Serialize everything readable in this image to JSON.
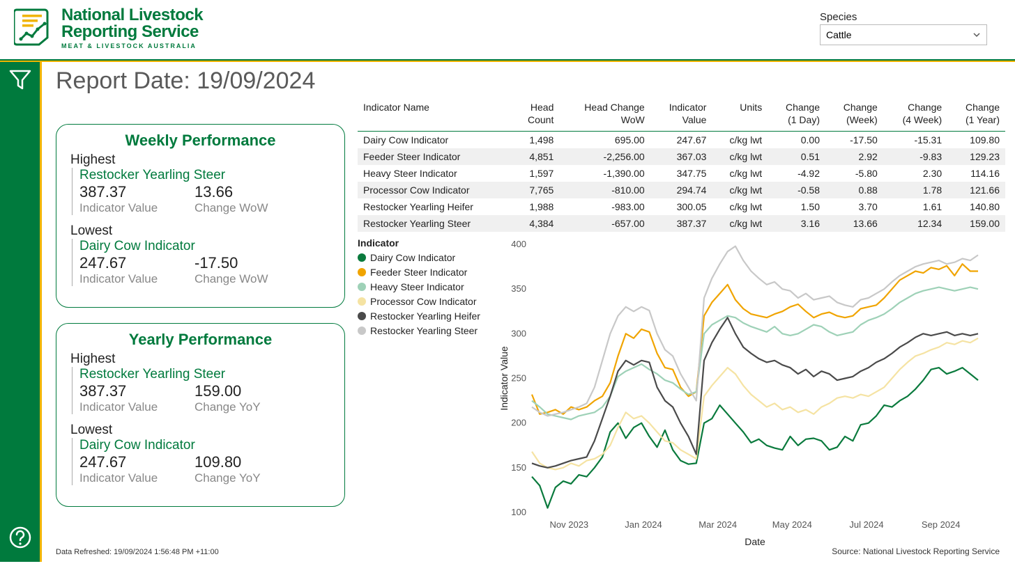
{
  "brand": {
    "line1": "National Livestock",
    "line2": "Reporting Service",
    "sub": "MEAT & LIVESTOCK AUSTRALIA",
    "logo_colors": {
      "frame": "#007a3d",
      "bars": "#f0b400",
      "line": "#007a3d"
    }
  },
  "species": {
    "label": "Species",
    "value": "Cattle"
  },
  "report_date": "Report Date: 19/09/2024",
  "rail": {
    "accent": "#f0b400",
    "bg": "#007a3d"
  },
  "cards": {
    "weekly": {
      "title": "Weekly Performance",
      "highest_label": "Highest",
      "lowest_label": "Lowest",
      "metric1_label": "Indicator Value",
      "metric2_label": "Change WoW",
      "highest": {
        "name": "Restocker Yearling Steer",
        "value": "387.37",
        "change": "13.66"
      },
      "lowest": {
        "name": "Dairy Cow Indicator",
        "value": "247.67",
        "change": "-17.50"
      }
    },
    "yearly": {
      "title": "Yearly Performance",
      "highest_label": "Highest",
      "lowest_label": "Lowest",
      "metric1_label": "Indicator Value",
      "metric2_label": "Change YoY",
      "highest": {
        "name": "Restocker Yearling Steer",
        "value": "387.37",
        "change": "159.00"
      },
      "lowest": {
        "name": "Dairy Cow Indicator",
        "value": "247.67",
        "change": "109.80"
      }
    }
  },
  "table": {
    "columns": [
      [
        "Indicator Name",
        ""
      ],
      [
        "Head",
        "Count"
      ],
      [
        "Head Change",
        "WoW"
      ],
      [
        "Indicator",
        "Value"
      ],
      [
        "Units",
        ""
      ],
      [
        "Change",
        "(1 Day)"
      ],
      [
        "Change",
        "(Week)"
      ],
      [
        "Change",
        "(4 Week)"
      ],
      [
        "Change",
        "(1 Year)"
      ]
    ],
    "rows": [
      {
        "name": "Dairy Cow Indicator",
        "head": "1,498",
        "hwow": "695.00",
        "hwow_sign": 1,
        "val": "247.67",
        "units": "c/kg lwt",
        "d1": "0.00",
        "d1_sign": 1,
        "wk": "-17.50",
        "wk_sign": -1,
        "w4": "-15.31",
        "w4_sign": -1,
        "yr": "109.80",
        "yr_sign": 1
      },
      {
        "name": "Feeder Steer Indicator",
        "head": "4,851",
        "hwow": "-2,256.00",
        "hwow_sign": -1,
        "val": "367.03",
        "units": "c/kg lwt",
        "d1": "0.51",
        "d1_sign": 1,
        "wk": "2.92",
        "wk_sign": 1,
        "w4": "-9.83",
        "w4_sign": -1,
        "yr": "129.23",
        "yr_sign": 1
      },
      {
        "name": "Heavy Steer Indicator",
        "head": "1,597",
        "hwow": "-1,390.00",
        "hwow_sign": -1,
        "val": "347.75",
        "units": "c/kg lwt",
        "d1": "-4.92",
        "d1_sign": -1,
        "wk": "-5.80",
        "wk_sign": -1,
        "w4": "2.30",
        "w4_sign": 1,
        "yr": "114.16",
        "yr_sign": 1
      },
      {
        "name": "Processor Cow Indicator",
        "head": "7,765",
        "hwow": "-810.00",
        "hwow_sign": -1,
        "val": "294.74",
        "units": "c/kg lwt",
        "d1": "-0.58",
        "d1_sign": -1,
        "wk": "0.88",
        "wk_sign": 1,
        "w4": "1.78",
        "w4_sign": 1,
        "yr": "121.66",
        "yr_sign": 1
      },
      {
        "name": "Restocker Yearling Heifer",
        "head": "1,988",
        "hwow": "-983.00",
        "hwow_sign": -1,
        "val": "300.05",
        "units": "c/kg lwt",
        "d1": "1.50",
        "d1_sign": 1,
        "wk": "3.70",
        "wk_sign": 1,
        "w4": "1.61",
        "w4_sign": 1,
        "yr": "140.80",
        "yr_sign": 1
      },
      {
        "name": "Restocker Yearling Steer",
        "head": "4,384",
        "hwow": "-657.00",
        "hwow_sign": -1,
        "val": "387.37",
        "units": "c/kg lwt",
        "d1": "3.16",
        "d1_sign": 1,
        "wk": "13.66",
        "wk_sign": 1,
        "w4": "12.34",
        "w4_sign": 1,
        "yr": "159.00",
        "yr_sign": 1
      }
    ]
  },
  "chart": {
    "type": "line",
    "legend_title": "Indicator",
    "y_label": "Indicator Value",
    "x_label": "Date",
    "ylim": [
      100,
      400
    ],
    "ytick_step": 50,
    "yticks": [
      100,
      150,
      200,
      250,
      300,
      350,
      400
    ],
    "xticks": [
      "Nov 2023",
      "Jan 2024",
      "Mar 2024",
      "May 2024",
      "Jul 2024",
      "Sep 2024"
    ],
    "background_color": "#ffffff",
    "grid_color": "#e8e8e8",
    "label_fontsize": 14,
    "tick_fontsize": 13,
    "line_width": 2.2,
    "series": [
      {
        "name": "Dairy Cow Indicator",
        "color": "#0a7a3d",
        "y": [
          140,
          130,
          105,
          128,
          135,
          132,
          142,
          140,
          150,
          162,
          190,
          200,
          183,
          195,
          200,
          185,
          173,
          192,
          170,
          158,
          154,
          155,
          200,
          205,
          220,
          210,
          200,
          190,
          178,
          182,
          175,
          172,
          170,
          185,
          175,
          182,
          183,
          180,
          170,
          173,
          185,
          180,
          198,
          200,
          208,
          220,
          218,
          225,
          230,
          238,
          248,
          260,
          262,
          255,
          258,
          262,
          255,
          248
        ]
      },
      {
        "name": "Feeder Steer Indicator",
        "color": "#f0a400",
        "y": [
          232,
          210,
          212,
          215,
          210,
          218,
          215,
          218,
          225,
          230,
          245,
          275,
          300,
          295,
          305,
          302,
          278,
          262,
          260,
          240,
          230,
          235,
          320,
          335,
          345,
          355,
          338,
          328,
          322,
          320,
          318,
          322,
          325,
          330,
          333,
          325,
          318,
          322,
          324,
          320,
          318,
          320,
          328,
          330,
          332,
          340,
          350,
          360,
          365,
          370,
          368,
          374,
          372,
          376,
          365,
          378,
          370,
          370
        ]
      },
      {
        "name": "Heavy Steer Indicator",
        "color": "#9ed1b7",
        "y": [
          225,
          218,
          210,
          208,
          206,
          204,
          208,
          210,
          212,
          218,
          230,
          252,
          258,
          262,
          266,
          260,
          255,
          248,
          245,
          238,
          232,
          235,
          300,
          310,
          315,
          320,
          318,
          312,
          308,
          305,
          302,
          308,
          300,
          298,
          300,
          305,
          310,
          308,
          302,
          298,
          300,
          302,
          310,
          315,
          318,
          322,
          328,
          335,
          340,
          345,
          348,
          350,
          352,
          350,
          348,
          350,
          352,
          350
        ]
      },
      {
        "name": "Processor Cow Indicator",
        "color": "#f5e3a3",
        "y": [
          168,
          155,
          150,
          148,
          150,
          155,
          152,
          158,
          160,
          165,
          175,
          195,
          212,
          205,
          208,
          200,
          190,
          180,
          178,
          170,
          165,
          160,
          230,
          242,
          252,
          262,
          255,
          242,
          232,
          225,
          218,
          222,
          215,
          218,
          212,
          215,
          210,
          218,
          222,
          228,
          230,
          228,
          232,
          230,
          235,
          240,
          250,
          260,
          268,
          275,
          278,
          282,
          285,
          290,
          288,
          292,
          290,
          295
        ]
      },
      {
        "name": "Restocker Yearling Heifer",
        "color": "#4a4a4a",
        "y": [
          155,
          152,
          150,
          152,
          155,
          158,
          160,
          162,
          180,
          205,
          230,
          258,
          270,
          265,
          270,
          268,
          240,
          225,
          218,
          200,
          185,
          165,
          270,
          290,
          305,
          318,
          300,
          285,
          278,
          272,
          268,
          270,
          265,
          262,
          255,
          260,
          252,
          258,
          255,
          248,
          250,
          252,
          258,
          262,
          268,
          272,
          278,
          285,
          290,
          296,
          300,
          298,
          300,
          302,
          298,
          300,
          298,
          300
        ]
      },
      {
        "name": "Restocker Yearling Steer",
        "color": "#c8c8c8",
        "y": [
          218,
          212,
          208,
          210,
          212,
          215,
          218,
          222,
          240,
          270,
          300,
          320,
          330,
          325,
          330,
          326,
          300,
          282,
          275,
          255,
          240,
          225,
          340,
          362,
          378,
          392,
          398,
          382,
          370,
          362,
          355,
          358,
          350,
          348,
          340,
          345,
          338,
          340,
          342,
          335,
          332,
          330,
          338,
          340,
          345,
          350,
          358,
          365,
          370,
          375,
          378,
          380,
          382,
          378,
          380,
          384,
          382,
          388
        ]
      }
    ]
  },
  "footer": {
    "refreshed": "Data Refreshed: 19/09/2024 1:56:48 PM +11:00",
    "source": "Source: National Livestock Reporting Service"
  },
  "colors": {
    "pos": "#007a3d",
    "neg": "#c00000"
  }
}
